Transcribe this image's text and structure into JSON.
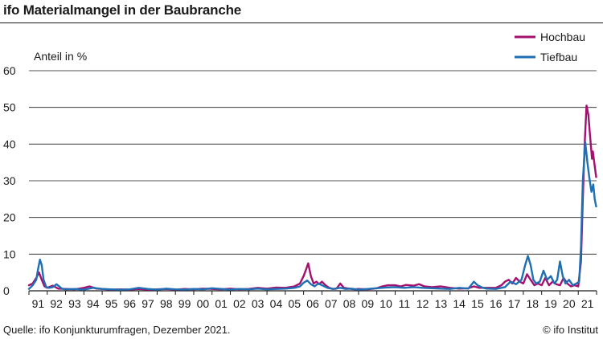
{
  "header": {
    "title": "ifo Materialmangel in der Baubranche"
  },
  "footer": {
    "source": "Quelle: ifo Konjunkturumfragen, Dezember 2021.",
    "copyright": "© ifo Institut"
  },
  "chart_data": {
    "type": "line",
    "title": "ifo Materialmangel in der Baubranche",
    "ylabel": "Anteil in %",
    "xlabel": "",
    "ylim": [
      0,
      60
    ],
    "yticks": [
      0,
      10,
      20,
      30,
      40,
      50,
      60
    ],
    "xlim": [
      1991,
      2022
    ],
    "xtick_labels": [
      "91",
      "92",
      "93",
      "94",
      "95",
      "96",
      "97",
      "98",
      "99",
      "00",
      "01",
      "02",
      "03",
      "04",
      "05",
      "06",
      "07",
      "08",
      "09",
      "10",
      "11",
      "12",
      "13",
      "14",
      "15",
      "16",
      "17",
      "18",
      "19",
      "20",
      "21"
    ],
    "grid": "horizontal",
    "legend_position": "top-right",
    "colors": {
      "Hochbau": "#a4106f",
      "Tiefbau": "#1f6fb4"
    },
    "series": [
      {
        "name": "Hochbau",
        "color": "#a4106f",
        "points": [
          [
            1991.0,
            1.5
          ],
          [
            1991.2,
            2.0
          ],
          [
            1991.4,
            3.5
          ],
          [
            1991.55,
            5.0
          ],
          [
            1991.7,
            3.0
          ],
          [
            1991.85,
            1.2
          ],
          [
            1992.0,
            0.8
          ],
          [
            1992.3,
            1.4
          ],
          [
            1992.6,
            0.6
          ],
          [
            1993.0,
            0.5
          ],
          [
            1993.5,
            0.4
          ],
          [
            1994.0,
            0.8
          ],
          [
            1994.3,
            1.2
          ],
          [
            1994.7,
            0.6
          ],
          [
            1995.0,
            0.5
          ],
          [
            1995.5,
            0.3
          ],
          [
            1996.0,
            0.4
          ],
          [
            1996.5,
            0.3
          ],
          [
            1997.0,
            0.5
          ],
          [
            1997.5,
            0.3
          ],
          [
            1998.0,
            0.4
          ],
          [
            1998.5,
            0.5
          ],
          [
            1999.0,
            0.3
          ],
          [
            1999.5,
            0.5
          ],
          [
            2000.0,
            0.4
          ],
          [
            2000.5,
            0.6
          ],
          [
            2001.0,
            0.5
          ],
          [
            2001.5,
            0.4
          ],
          [
            2002.0,
            0.6
          ],
          [
            2002.5,
            0.4
          ],
          [
            2003.0,
            0.5
          ],
          [
            2003.5,
            0.8
          ],
          [
            2004.0,
            0.6
          ],
          [
            2004.5,
            0.9
          ],
          [
            2005.0,
            0.8
          ],
          [
            2005.5,
            1.2
          ],
          [
            2005.8,
            2.0
          ],
          [
            2006.0,
            4.0
          ],
          [
            2006.15,
            6.0
          ],
          [
            2006.25,
            7.5
          ],
          [
            2006.4,
            4.0
          ],
          [
            2006.55,
            2.0
          ],
          [
            2006.7,
            2.5
          ],
          [
            2006.85,
            1.8
          ],
          [
            2007.0,
            2.5
          ],
          [
            2007.2,
            1.5
          ],
          [
            2007.4,
            0.8
          ],
          [
            2007.6,
            0.5
          ],
          [
            2007.8,
            0.6
          ],
          [
            2008.0,
            2.0
          ],
          [
            2008.2,
            0.8
          ],
          [
            2008.5,
            0.6
          ],
          [
            2008.8,
            0.4
          ],
          [
            2009.0,
            0.5
          ],
          [
            2009.5,
            0.4
          ],
          [
            2010.0,
            0.7
          ],
          [
            2010.3,
            1.2
          ],
          [
            2010.6,
            1.5
          ],
          [
            2011.0,
            1.5
          ],
          [
            2011.3,
            1.2
          ],
          [
            2011.6,
            1.6
          ],
          [
            2012.0,
            1.4
          ],
          [
            2012.3,
            1.8
          ],
          [
            2012.6,
            1.2
          ],
          [
            2013.0,
            1.0
          ],
          [
            2013.5,
            1.2
          ],
          [
            2014.0,
            0.8
          ],
          [
            2014.5,
            0.6
          ],
          [
            2015.0,
            0.7
          ],
          [
            2015.3,
            1.2
          ],
          [
            2015.6,
            0.8
          ],
          [
            2016.0,
            0.8
          ],
          [
            2016.5,
            0.8
          ],
          [
            2016.8,
            1.5
          ],
          [
            2017.0,
            2.5
          ],
          [
            2017.2,
            3.0
          ],
          [
            2017.4,
            2.0
          ],
          [
            2017.6,
            3.5
          ],
          [
            2017.8,
            2.5
          ],
          [
            2018.0,
            2.0
          ],
          [
            2018.2,
            4.5
          ],
          [
            2018.4,
            3.0
          ],
          [
            2018.6,
            1.5
          ],
          [
            2018.8,
            2.0
          ],
          [
            2019.0,
            1.5
          ],
          [
            2019.2,
            3.5
          ],
          [
            2019.4,
            1.5
          ],
          [
            2019.6,
            2.5
          ],
          [
            2019.8,
            1.8
          ],
          [
            2020.0,
            1.5
          ],
          [
            2020.2,
            3.5
          ],
          [
            2020.4,
            2.0
          ],
          [
            2020.6,
            1.2
          ],
          [
            2020.8,
            1.5
          ],
          [
            2021.0,
            1.2
          ],
          [
            2021.15,
            8.0
          ],
          [
            2021.25,
            25.0
          ],
          [
            2021.35,
            40.0
          ],
          [
            2021.45,
            50.5
          ],
          [
            2021.55,
            48.0
          ],
          [
            2021.65,
            42.0
          ],
          [
            2021.75,
            36.0
          ],
          [
            2021.8,
            38.0
          ],
          [
            2021.9,
            34.0
          ],
          [
            2021.98,
            31.0
          ]
        ]
      },
      {
        "name": "Tiefbau",
        "color": "#1f6fb4",
        "points": [
          [
            1991.0,
            0.5
          ],
          [
            1991.2,
            1.5
          ],
          [
            1991.4,
            3.0
          ],
          [
            1991.5,
            6.0
          ],
          [
            1991.6,
            8.5
          ],
          [
            1991.7,
            7.0
          ],
          [
            1991.8,
            3.0
          ],
          [
            1991.95,
            1.0
          ],
          [
            1992.1,
            0.8
          ],
          [
            1992.3,
            1.0
          ],
          [
            1992.5,
            1.8
          ],
          [
            1992.65,
            1.2
          ],
          [
            1992.8,
            0.6
          ],
          [
            1993.0,
            0.4
          ],
          [
            1993.5,
            0.5
          ],
          [
            1994.0,
            0.3
          ],
          [
            1994.5,
            0.8
          ],
          [
            1995.0,
            0.5
          ],
          [
            1995.5,
            0.4
          ],
          [
            1996.0,
            0.3
          ],
          [
            1996.5,
            0.4
          ],
          [
            1997.0,
            0.8
          ],
          [
            1997.5,
            0.5
          ],
          [
            1998.0,
            0.3
          ],
          [
            1998.5,
            0.6
          ],
          [
            1999.0,
            0.4
          ],
          [
            1999.5,
            0.3
          ],
          [
            2000.0,
            0.5
          ],
          [
            2000.5,
            0.4
          ],
          [
            2001.0,
            0.7
          ],
          [
            2001.5,
            0.5
          ],
          [
            2002.0,
            0.3
          ],
          [
            2002.5,
            0.5
          ],
          [
            2003.0,
            0.4
          ],
          [
            2003.5,
            0.6
          ],
          [
            2004.0,
            0.4
          ],
          [
            2004.5,
            0.5
          ],
          [
            2005.0,
            0.6
          ],
          [
            2005.5,
            0.8
          ],
          [
            2005.8,
            1.2
          ],
          [
            2006.0,
            2.2
          ],
          [
            2006.2,
            2.8
          ],
          [
            2006.4,
            1.8
          ],
          [
            2006.6,
            1.2
          ],
          [
            2006.8,
            2.0
          ],
          [
            2007.0,
            1.5
          ],
          [
            2007.3,
            0.8
          ],
          [
            2007.6,
            0.5
          ],
          [
            2008.0,
            0.8
          ],
          [
            2008.3,
            0.5
          ],
          [
            2008.6,
            0.6
          ],
          [
            2009.0,
            0.3
          ],
          [
            2009.5,
            0.5
          ],
          [
            2010.0,
            0.7
          ],
          [
            2010.5,
            0.9
          ],
          [
            2011.0,
            1.0
          ],
          [
            2011.5,
            0.8
          ],
          [
            2012.0,
            1.0
          ],
          [
            2012.5,
            0.8
          ],
          [
            2013.0,
            0.7
          ],
          [
            2013.5,
            0.6
          ],
          [
            2014.0,
            0.5
          ],
          [
            2014.5,
            0.8
          ],
          [
            2015.0,
            0.6
          ],
          [
            2015.3,
            2.5
          ],
          [
            2015.5,
            1.5
          ],
          [
            2015.8,
            0.8
          ],
          [
            2016.0,
            0.6
          ],
          [
            2016.5,
            0.5
          ],
          [
            2017.0,
            1.0
          ],
          [
            2017.3,
            2.5
          ],
          [
            2017.6,
            1.8
          ],
          [
            2017.9,
            3.0
          ],
          [
            2018.1,
            7.0
          ],
          [
            2018.25,
            9.5
          ],
          [
            2018.4,
            7.0
          ],
          [
            2018.55,
            3.0
          ],
          [
            2018.7,
            2.0
          ],
          [
            2018.9,
            2.5
          ],
          [
            2019.1,
            5.5
          ],
          [
            2019.3,
            3.0
          ],
          [
            2019.5,
            4.0
          ],
          [
            2019.7,
            2.0
          ],
          [
            2019.85,
            3.0
          ],
          [
            2020.0,
            8.0
          ],
          [
            2020.15,
            4.0
          ],
          [
            2020.3,
            2.0
          ],
          [
            2020.5,
            3.0
          ],
          [
            2020.7,
            1.5
          ],
          [
            2020.9,
            2.0
          ],
          [
            2021.05,
            2.5
          ],
          [
            2021.15,
            12.0
          ],
          [
            2021.25,
            30.0
          ],
          [
            2021.38,
            40.5
          ],
          [
            2021.5,
            35.0
          ],
          [
            2021.6,
            31.0
          ],
          [
            2021.72,
            27.0
          ],
          [
            2021.82,
            29.0
          ],
          [
            2021.9,
            25.0
          ],
          [
            2021.98,
            23.0
          ]
        ]
      }
    ]
  }
}
